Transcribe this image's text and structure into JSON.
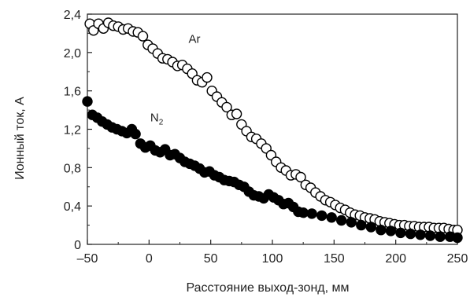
{
  "chart_data": {
    "type": "scatter",
    "xlabel": "Расстояние выход-зонд, мм",
    "ylabel": "Ионный ток, А",
    "xlim": [
      -50,
      250
    ],
    "ylim": [
      0,
      2.4
    ],
    "x_ticks": [
      -50,
      0,
      50,
      100,
      150,
      200,
      250
    ],
    "x_tick_labels": [
      "–50",
      "0",
      "50",
      "100",
      "150",
      "200",
      "250"
    ],
    "y_ticks": [
      0,
      0.4,
      0.8,
      1.2,
      1.6,
      2.0,
      2.4
    ],
    "y_tick_labels": [
      "0",
      "0,4",
      "0,8",
      "1,2",
      "1,6",
      "2,0",
      "2,4"
    ],
    "grid": false,
    "series": [
      {
        "name": "Ar",
        "marker": "open-circle",
        "label_text": "Ar",
        "label_at": [
          32,
          2.1
        ],
        "x": [
          -48,
          -45,
          -41,
          -37,
          -33,
          -29,
          -25,
          -21,
          -17,
          -13,
          -9,
          -5,
          -1,
          3,
          7,
          11,
          15,
          19,
          23,
          27,
          31,
          35,
          39,
          43,
          47,
          51,
          55,
          59,
          63,
          67,
          71,
          75,
          79,
          83,
          87,
          91,
          95,
          99,
          103,
          107,
          111,
          115,
          119,
          123,
          127,
          131,
          135,
          139,
          143,
          147,
          151,
          155,
          159,
          163,
          167,
          171,
          175,
          179,
          183,
          187,
          191,
          195,
          199,
          203,
          207,
          211,
          215,
          219,
          223,
          227,
          231,
          235,
          239,
          243,
          247,
          250
        ],
        "y": [
          2.3,
          2.23,
          2.3,
          2.25,
          2.31,
          2.28,
          2.27,
          2.24,
          2.25,
          2.22,
          2.21,
          2.17,
          2.08,
          2.04,
          1.99,
          1.94,
          1.93,
          1.9,
          1.86,
          1.87,
          1.83,
          1.78,
          1.71,
          1.69,
          1.74,
          1.6,
          1.54,
          1.48,
          1.43,
          1.35,
          1.36,
          1.25,
          1.18,
          1.12,
          1.1,
          1.05,
          1.0,
          0.93,
          0.86,
          0.8,
          0.77,
          0.72,
          0.73,
          0.7,
          0.62,
          0.59,
          0.54,
          0.5,
          0.46,
          0.44,
          0.41,
          0.38,
          0.36,
          0.33,
          0.31,
          0.3,
          0.28,
          0.27,
          0.26,
          0.24,
          0.23,
          0.22,
          0.21,
          0.2,
          0.2,
          0.19,
          0.19,
          0.18,
          0.18,
          0.18,
          0.17,
          0.17,
          0.17,
          0.16,
          0.15,
          0.15
        ]
      },
      {
        "name": "N2",
        "marker": "filled-circle",
        "label_text": "N",
        "label_sub": "2",
        "label_at": [
          1,
          1.28
        ],
        "x": [
          -50,
          -46,
          -42,
          -38,
          -34,
          -30,
          -26,
          -22,
          -18,
          -14,
          -11,
          -7,
          -3,
          1,
          5,
          9,
          13,
          17,
          21,
          25,
          29,
          33,
          37,
          41,
          45,
          49,
          53,
          57,
          61,
          65,
          69,
          73,
          77,
          81,
          85,
          89,
          93,
          97,
          101,
          105,
          109,
          113,
          117,
          121,
          125,
          132,
          140,
          148,
          156,
          164,
          172,
          180,
          188,
          196,
          204,
          212,
          220,
          228,
          236,
          244,
          250
        ],
        "y": [
          1.49,
          1.35,
          1.32,
          1.28,
          1.25,
          1.22,
          1.2,
          1.18,
          1.16,
          1.2,
          1.15,
          1.05,
          1.01,
          1.03,
          0.98,
          0.96,
          0.99,
          0.93,
          0.94,
          0.9,
          0.86,
          0.84,
          0.82,
          0.79,
          0.75,
          0.76,
          0.72,
          0.7,
          0.67,
          0.66,
          0.65,
          0.62,
          0.6,
          0.55,
          0.51,
          0.5,
          0.48,
          0.52,
          0.49,
          0.46,
          0.42,
          0.43,
          0.39,
          0.34,
          0.33,
          0.32,
          0.3,
          0.28,
          0.25,
          0.23,
          0.2,
          0.18,
          0.15,
          0.14,
          0.12,
          0.11,
          0.1,
          0.09,
          0.08,
          0.08,
          0.07
        ]
      }
    ]
  }
}
